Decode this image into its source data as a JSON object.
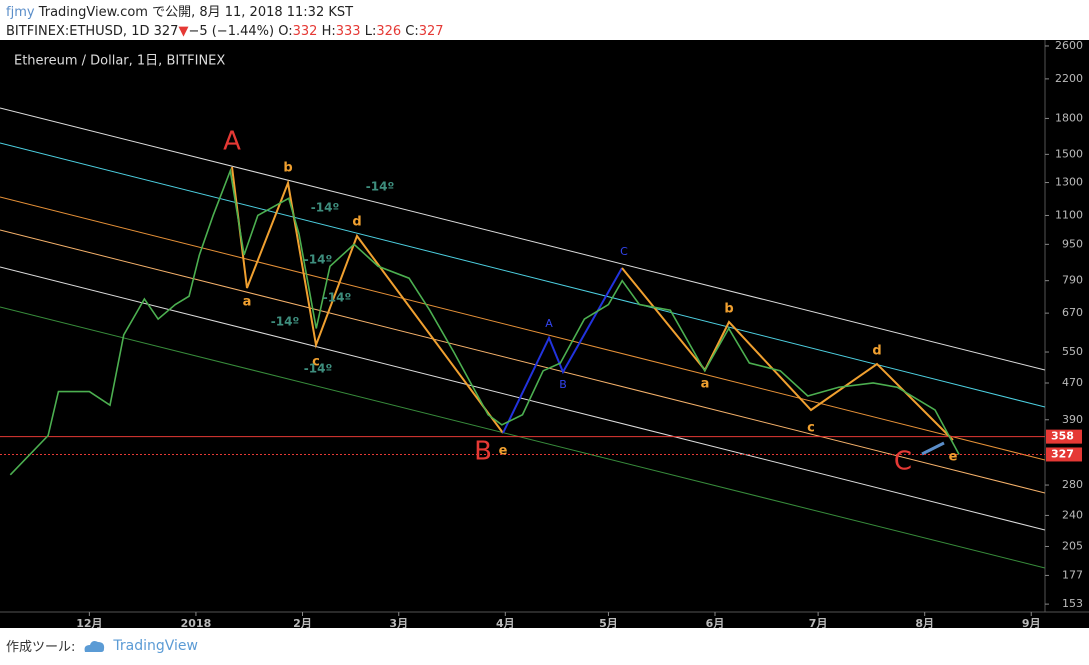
{
  "header": {
    "user": "fjmy",
    "published": "TradingView.com で公開, 8月 11, 2018 11:32 KST",
    "symbol": "BITFINEX:ETHUSD, 1D 327",
    "arrow": "▼",
    "change": "−5 (−1.44%)",
    "ohlc": [
      {
        "label": "O:",
        "value": 332
      },
      {
        "label": "H:",
        "value": 333
      },
      {
        "label": "L:",
        "value": 326
      },
      {
        "label": "C:",
        "value": 327
      }
    ]
  },
  "chart_data": {
    "type": "line",
    "title": "Ethereum / Dollar, 1日, BITFINEX",
    "color": "#4caf50",
    "log_scale": true,
    "x": [
      7,
      18,
      21,
      30,
      36,
      40,
      46,
      50,
      55,
      59,
      62,
      66,
      71,
      75,
      79,
      88,
      91,
      96,
      100,
      107,
      114,
      123,
      129,
      136,
      146,
      150,
      156,
      162,
      167,
      174,
      181,
      185,
      190,
      199,
      209,
      216,
      222,
      231,
      239,
      248,
      258,
      265,
      276,
      283
    ],
    "values": [
      295,
      360,
      450,
      450,
      420,
      600,
      720,
      650,
      700,
      730,
      900,
      1100,
      1380,
      900,
      1100,
      1200,
      1000,
      620,
      850,
      950,
      850,
      800,
      680,
      550,
      400,
      380,
      400,
      500,
      520,
      650,
      700,
      790,
      700,
      680,
      500,
      620,
      520,
      500,
      440,
      460,
      470,
      460,
      410,
      327
    ],
    "xlim": [
      4,
      308
    ],
    "ylim": [
      147,
      2680
    ],
    "yticks": [
      2600,
      2200,
      1800,
      1500,
      1300,
      1100,
      950,
      790,
      670,
      550,
      470,
      390,
      280,
      240,
      205,
      177,
      153
    ],
    "xticks": [
      {
        "value": 30,
        "label": "12月"
      },
      {
        "value": 61,
        "label": "2018"
      },
      {
        "value": 92,
        "label": "2月"
      },
      {
        "value": 120,
        "label": "3月"
      },
      {
        "value": 151,
        "label": "4月"
      },
      {
        "value": 181,
        "label": "5月"
      },
      {
        "value": 212,
        "label": "6月"
      },
      {
        "value": 242,
        "label": "7月"
      },
      {
        "value": 273,
        "label": "8月"
      },
      {
        "value": 304,
        "label": "9月"
      }
    ],
    "price_lines": [
      358,
      327
    ],
    "annotations": [
      "A",
      "b",
      "d",
      "a",
      "c",
      "B",
      "e",
      "A",
      "B",
      "C",
      "b",
      "a",
      "d",
      "c",
      "e",
      "C",
      "-14º",
      "-14º",
      "-14º",
      "-14º",
      "-14º",
      "-14º"
    ]
  },
  "footer": {
    "label": "作成ツール:",
    "brand": "TradingView"
  }
}
